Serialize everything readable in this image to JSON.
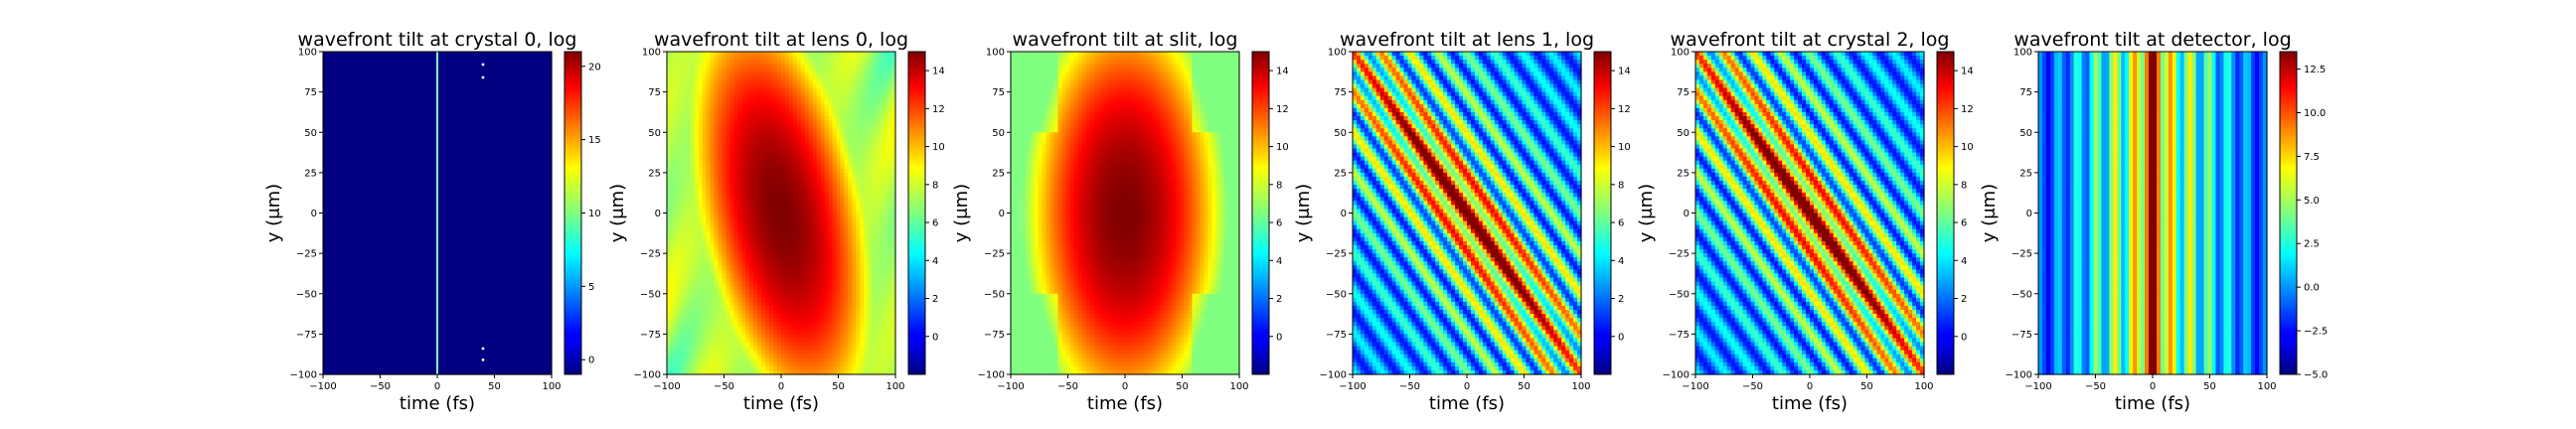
{
  "figure": {
    "panel_count": 6
  },
  "chart_data": [
    {
      "type": "heatmap",
      "title": "wavefront tilt at crystal 0, log",
      "xlabel": "time (fs)",
      "ylabel": "y (μm)",
      "xlim": [
        -100,
        100
      ],
      "ylim": [
        -100,
        100
      ],
      "xticks": [
        "−100",
        "−50",
        "0",
        "50",
        "100"
      ],
      "yticks": [
        "100",
        "75",
        "50",
        "25",
        "0",
        "−25",
        "−50",
        "−75",
        "−100"
      ],
      "colormap": "jet",
      "colorbar": {
        "min": -1,
        "max": 21,
        "ticks": [
          0,
          5,
          10,
          15,
          20
        ]
      },
      "pattern": "dark field with a single bright vertical line at t = 0 and a few bright dots near t = 40 fs, y = ±90 μm",
      "model": "vline"
    },
    {
      "type": "heatmap",
      "title": "wavefront tilt at lens 0, log",
      "xlabel": "time (fs)",
      "ylabel": "y (μm)",
      "xlim": [
        -100,
        100
      ],
      "ylim": [
        -100,
        100
      ],
      "xticks": [
        "−100",
        "−50",
        "0",
        "50",
        "100"
      ],
      "yticks": [
        "100",
        "75",
        "50",
        "25",
        "0",
        "−25",
        "−50",
        "−75",
        "−100"
      ],
      "colormap": "jet",
      "colorbar": {
        "min": -2,
        "max": 15,
        "ticks": [
          0,
          2,
          4,
          6,
          8,
          10,
          12,
          14
        ]
      },
      "pattern": "broad elliptical high-intensity region centered at t = 0, tilted, dropping toward the corners",
      "model": "blob_tilted"
    },
    {
      "type": "heatmap",
      "title": "wavefront tilt at slit, log",
      "xlabel": "time (fs)",
      "ylabel": "y (μm)",
      "xlim": [
        -100,
        100
      ],
      "ylim": [
        -100,
        100
      ],
      "xticks": [
        "−100",
        "−50",
        "0",
        "50",
        "100"
      ],
      "yticks": [
        "100",
        "75",
        "50",
        "25",
        "0",
        "−25",
        "−50",
        "−75",
        "−100"
      ],
      "colormap": "jet",
      "colorbar": {
        "min": -2,
        "max": 15,
        "ticks": [
          0,
          2,
          4,
          6,
          8,
          10,
          12,
          14
        ]
      },
      "pattern": "near-symmetric elliptical high-intensity region centered at t = 0, y = 0",
      "model": "blob"
    },
    {
      "type": "heatmap",
      "title": "wavefront tilt at lens 1, log",
      "xlabel": "time (fs)",
      "ylabel": "y (μm)",
      "xlim": [
        -100,
        100
      ],
      "ylim": [
        -100,
        100
      ],
      "xticks": [
        "−100",
        "−50",
        "0",
        "50",
        "100"
      ],
      "yticks": [
        "100",
        "75",
        "50",
        "25",
        "0",
        "−25",
        "−50",
        "−75",
        "−100"
      ],
      "colormap": "jet",
      "colorbar": {
        "min": -2,
        "max": 15,
        "ticks": [
          0,
          2,
          4,
          6,
          8,
          10,
          12,
          14
        ]
      },
      "pattern": "diagonal high-intensity ridge from top-left to bottom-right with parallel fringes",
      "model": "diag"
    },
    {
      "type": "heatmap",
      "title": "wavefront tilt at crystal 2, log",
      "xlabel": "time (fs)",
      "ylabel": "y (μm)",
      "xlim": [
        -100,
        100
      ],
      "ylim": [
        -100,
        100
      ],
      "xticks": [
        "−100",
        "−50",
        "0",
        "50",
        "100"
      ],
      "yticks": [
        "100",
        "75",
        "50",
        "25",
        "0",
        "−25",
        "−50",
        "−75",
        "−100"
      ],
      "colormap": "jet",
      "colorbar": {
        "min": -2,
        "max": 15,
        "ticks": [
          0,
          2,
          4,
          6,
          8,
          10,
          12,
          14
        ]
      },
      "pattern": "diagonal high-intensity ridge from top-left to bottom-right with parallel fringes",
      "model": "diag"
    },
    {
      "type": "heatmap",
      "title": "wavefront tilt at detector, log",
      "xlabel": "time (fs)",
      "ylabel": "y (μm)",
      "xlim": [
        -100,
        100
      ],
      "ylim": [
        -100,
        100
      ],
      "xticks": [
        "−100",
        "−50",
        "0",
        "50",
        "100"
      ],
      "yticks": [
        "100",
        "75",
        "50",
        "25",
        "0",
        "−25",
        "−50",
        "−75",
        "−100"
      ],
      "colormap": "jet",
      "colorbar": {
        "min": -5,
        "max": 13.5,
        "ticks_text": [
          "12.5",
          "10.0",
          "7.5",
          "5.0",
          "2.5",
          "0.0",
          "−2.5",
          "−5.0"
        ],
        "ticks": [
          12.5,
          10.0,
          7.5,
          5.0,
          2.5,
          0.0,
          -2.5,
          -5.0
        ]
      },
      "pattern": "vertical fringes with the brightest band at t = 0, uniform along y",
      "model": "vbands"
    }
  ]
}
